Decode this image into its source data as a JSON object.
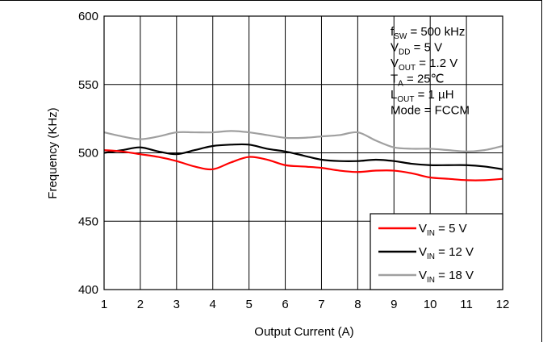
{
  "chart_data": {
    "type": "line",
    "xlabel": "Output Current (A)",
    "ylabel": "Frequency (KHz)",
    "xlim": [
      1,
      12
    ],
    "ylim": [
      400,
      600
    ],
    "xticks": [
      "1",
      "2",
      "3",
      "4",
      "5",
      "6",
      "7",
      "8",
      "9",
      "10",
      "11",
      "12"
    ],
    "yticks": [
      "400",
      "450",
      "500",
      "550",
      "600"
    ],
    "grid": true,
    "legend_position": "bottom-right",
    "conditions": [
      {
        "main": "f",
        "sub": "SW",
        "rest": " = 500 kHz"
      },
      {
        "main": "V",
        "sub": "DD",
        "rest": " = 5 V"
      },
      {
        "main": "V",
        "sub": "OUT",
        "rest": " = 1.2 V"
      },
      {
        "main": "T",
        "sub": "A",
        "rest": " = 25℃"
      },
      {
        "main": "L",
        "sub": "OUT",
        "rest": " = 1 µH"
      },
      {
        "main": "Mode = FCCM",
        "sub": "",
        "rest": ""
      }
    ],
    "series": [
      {
        "name": "V_IN = 5 V",
        "legend_main": "V",
        "legend_sub": "IN",
        "legend_rest": " = 5 V",
        "color": "#ff0000",
        "x": [
          1,
          1.5,
          2,
          2.5,
          3,
          3.5,
          4,
          4.5,
          5,
          5.5,
          6,
          6.5,
          7,
          7.5,
          8,
          8.5,
          9,
          9.5,
          10,
          10.5,
          11,
          11.5,
          12
        ],
        "y": [
          502,
          501,
          499,
          497,
          494,
          490,
          488,
          493,
          497,
          495,
          491,
          490,
          489,
          487,
          486,
          487,
          487,
          485,
          482,
          481,
          480,
          480,
          481
        ]
      },
      {
        "name": "V_IN = 12 V",
        "legend_main": "V",
        "legend_sub": "IN",
        "legend_rest": " = 12 V",
        "color": "#000000",
        "x": [
          1,
          1.5,
          2,
          2.5,
          3,
          3.5,
          4,
          4.5,
          5,
          5.5,
          6,
          6.5,
          7,
          7.5,
          8,
          8.5,
          9,
          9.5,
          10,
          10.5,
          11,
          11.5,
          12
        ],
        "y": [
          500,
          502,
          504,
          501,
          499,
          502,
          505,
          506,
          506,
          503,
          501,
          498,
          495,
          494,
          494,
          495,
          494,
          492,
          491,
          491,
          491,
          490,
          488
        ]
      },
      {
        "name": "V_IN = 18 V",
        "legend_main": "V",
        "legend_sub": "IN",
        "legend_rest": " = 18 V",
        "color": "#a0a0a0",
        "x": [
          1,
          1.5,
          2,
          2.5,
          3,
          3.5,
          4,
          4.5,
          5,
          5.5,
          6,
          6.5,
          7,
          7.5,
          8,
          8.5,
          9,
          9.5,
          10,
          10.5,
          11,
          11.5,
          12
        ],
        "y": [
          515,
          512,
          510,
          512,
          515,
          515,
          515,
          516,
          515,
          513,
          511,
          511,
          512,
          513,
          515,
          509,
          504,
          503,
          503,
          502,
          501,
          502,
          505
        ]
      }
    ]
  }
}
